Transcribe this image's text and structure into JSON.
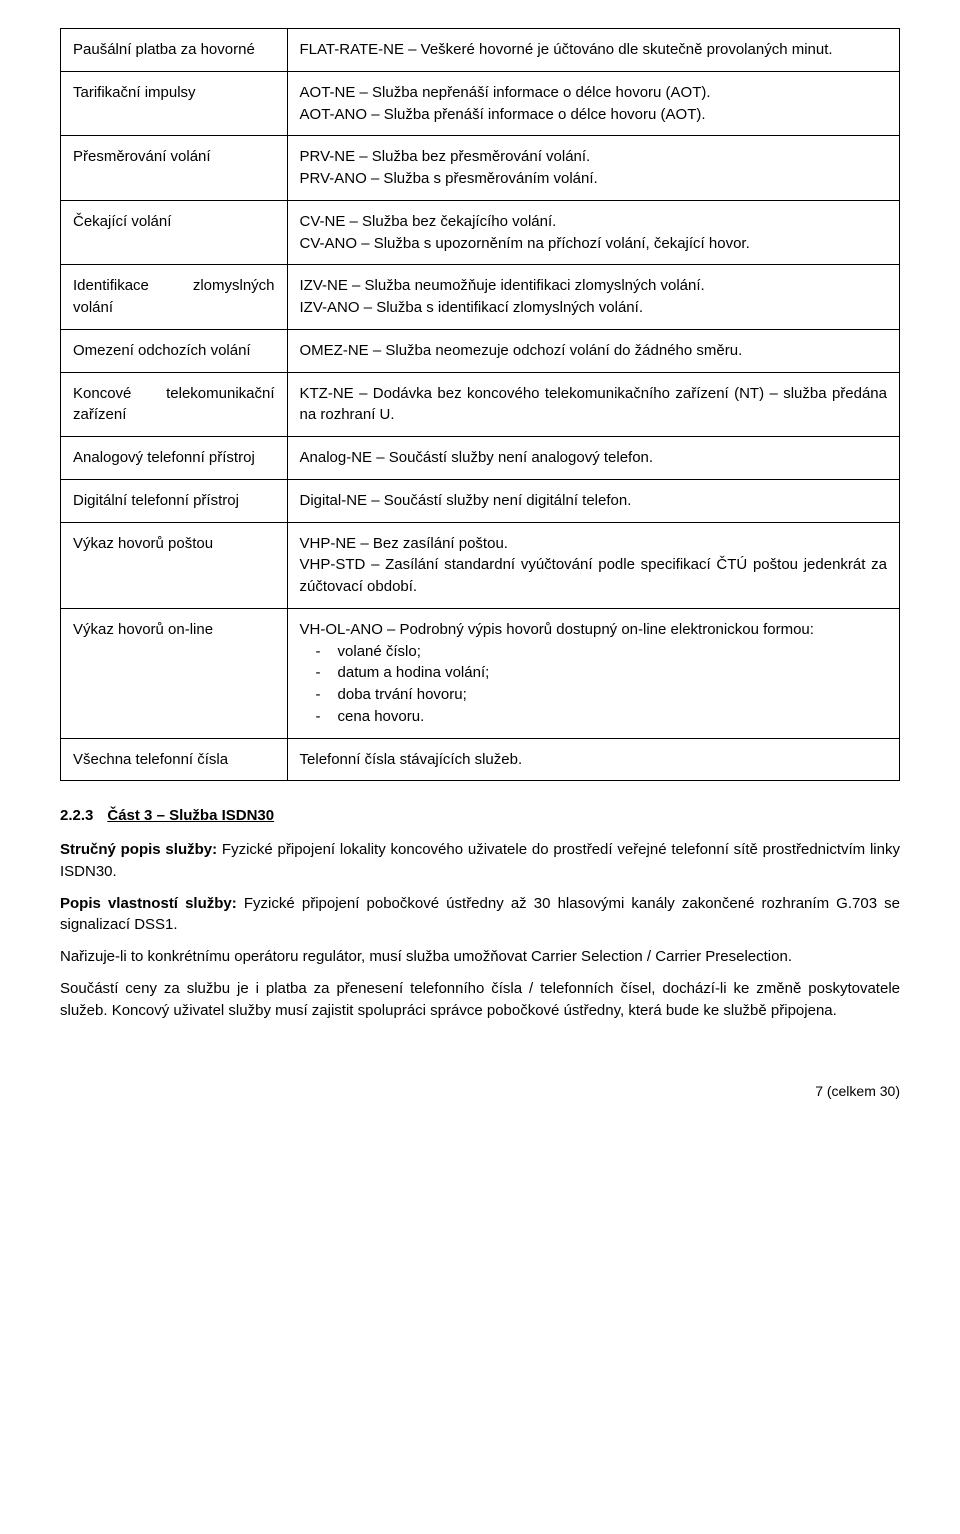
{
  "table": {
    "rows": [
      {
        "label": "Paušální platba za hovorné",
        "desc": "FLAT-RATE-NE – Veškeré hovorné je účtováno dle skutečně provolaných minut."
      },
      {
        "label": "Tarifikační impulsy",
        "lines": [
          "AOT-NE – Služba nepřenáší informace o délce hovoru (AOT).",
          "AOT-ANO – Služba přenáší informace o délce hovoru (AOT)."
        ]
      },
      {
        "label": "Přesměrování volání",
        "lines": [
          "PRV-NE – Služba bez přesměrování volání.",
          "PRV-ANO – Služba s přesměrováním volání."
        ]
      },
      {
        "label": "Čekající volání",
        "lines": [
          "CV-NE – Služba bez čekajícího volání.",
          "CV-ANO – Služba s upozorněním na příchozí volání, čekající hovor."
        ]
      },
      {
        "label": "Identifikace zlomyslných volání",
        "lines": [
          "IZV-NE – Služba neumožňuje identifikaci zlomyslných volání.",
          "IZV-ANO – Služba s identifikací zlomyslných volání."
        ]
      },
      {
        "label": "Omezení odchozích volání",
        "desc": "OMEZ-NE – Služba neomezuje odchozí volání do žádného směru."
      },
      {
        "label": "Koncové telekomunikační zařízení",
        "desc": "KTZ-NE – Dodávka bez koncového telekomunikačního zařízení (NT) – služba předána na rozhraní U."
      },
      {
        "label": "Analogový telefonní přístroj",
        "desc": "Analog-NE – Součástí služby není analogový telefon."
      },
      {
        "label": "Digitální telefonní přístroj",
        "desc": "Digital-NE – Součástí služby není digitální telefon."
      },
      {
        "label": "Výkaz hovorů poštou",
        "lines": [
          "VHP-NE – Bez zasílání poštou.",
          "VHP-STD – Zasílání standardní vyúčtování podle specifikací ČTÚ poštou jedenkrát za zúčtovací období."
        ]
      },
      {
        "label": "Výkaz hovorů on-line",
        "intro": "VH-OL-ANO – Podrobný výpis hovorů dostupný on-line elektronickou formou:",
        "bullets": [
          "volané číslo;",
          "datum a hodina volání;",
          "doba trvání hovoru;",
          "cena hovoru."
        ]
      },
      {
        "label": "Všechna telefonní čísla",
        "desc": "Telefonní čísla stávajících služeb."
      }
    ]
  },
  "section": {
    "number": "2.2.3",
    "title": "Část 3 – Služba ISDN30",
    "p1_lead": "Stručný popis služby:",
    "p1_rest": " Fyzické připojení lokality koncového uživatele do prostředí veřejné telefonní sítě prostřednictvím linky ISDN30.",
    "p2_lead": "Popis vlastností služby:",
    "p2_rest": " Fyzické připojení pobočkové ústředny až 30 hlasovými kanály zakončené rozhraním G.703 se signalizací DSS1.",
    "p3": "Nařizuje-li to konkrétnímu operátoru regulátor, musí služba umožňovat Carrier Selection / Carrier Preselection.",
    "p4": "Součástí ceny za službu je i platba za přenesení telefonního čísla / telefonních čísel, dochází-li ke změně poskytovatele služeb. Koncový uživatel služby musí zajistit spolupráci správce pobočkové ústředny, která bude ke službě připojena."
  },
  "footer": "7 (celkem 30)"
}
